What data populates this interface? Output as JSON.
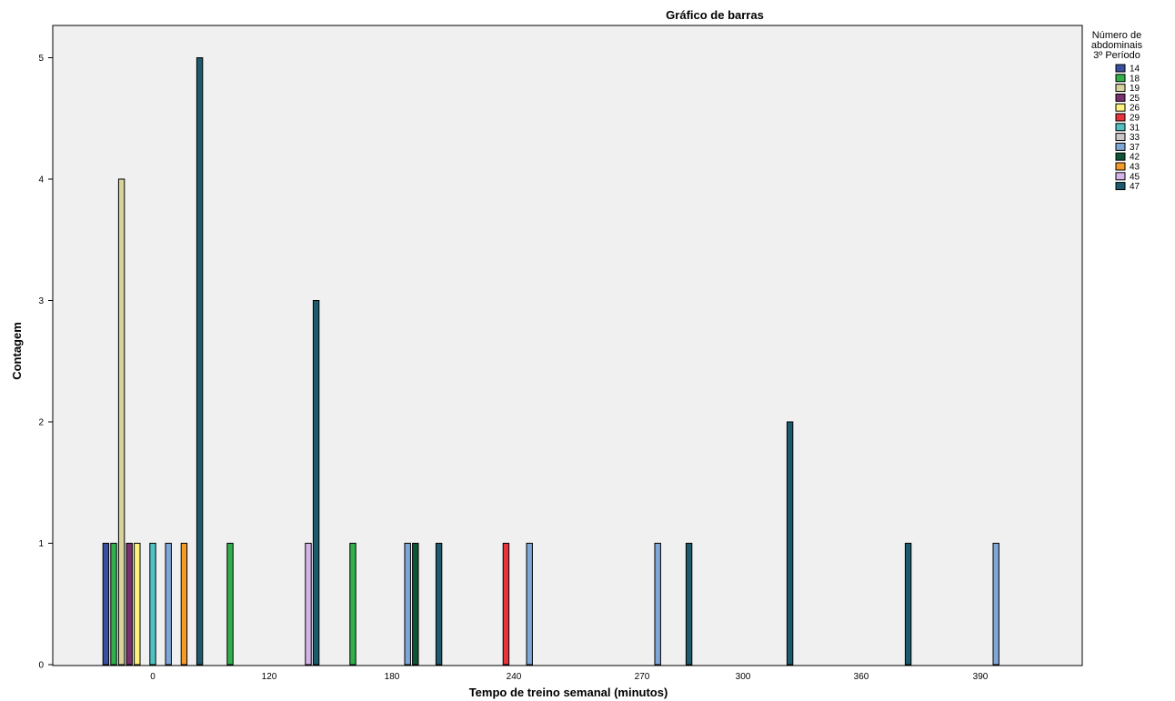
{
  "chart_data": {
    "type": "bar",
    "title": "Gráfico de barras",
    "xlabel": "Tempo de treino semanal (minutos)",
    "ylabel": "Contagem",
    "ylim": [
      0,
      5.25
    ],
    "yticks": [
      0,
      1,
      2,
      3,
      4,
      5
    ],
    "categories": [
      "0",
      "120",
      "180",
      "240",
      "270",
      "300",
      "360",
      "390"
    ],
    "legend": {
      "title_lines": [
        "Número de",
        "abdominais",
        "3º Período"
      ],
      "position": "top-right"
    },
    "series": [
      {
        "name": "14",
        "color": "#3a4fa0",
        "values": [
          1,
          0,
          0,
          0,
          0,
          0,
          0,
          0
        ]
      },
      {
        "name": "18",
        "color": "#2fb04a",
        "values": [
          1,
          1,
          1,
          0,
          0,
          0,
          0,
          0
        ]
      },
      {
        "name": "19",
        "color": "#d8d39c",
        "values": [
          4,
          0,
          0,
          0,
          0,
          0,
          0,
          0
        ]
      },
      {
        "name": "25",
        "color": "#7a2f6e",
        "values": [
          1,
          0,
          0,
          0,
          0,
          0,
          0,
          0
        ]
      },
      {
        "name": "26",
        "color": "#fbf37d",
        "values": [
          1,
          0,
          0,
          0,
          0,
          0,
          0,
          0
        ]
      },
      {
        "name": "29",
        "color": "#e8323c",
        "values": [
          0,
          0,
          0,
          1,
          0,
          0,
          0,
          0
        ]
      },
      {
        "name": "31",
        "color": "#4fc1c4",
        "values": [
          1,
          0,
          0,
          0,
          0,
          0,
          0,
          0
        ]
      },
      {
        "name": "33",
        "color": "#c8c8c8",
        "values": [
          0,
          0,
          0,
          0,
          0,
          0,
          0,
          0
        ]
      },
      {
        "name": "37",
        "color": "#7fa6d9",
        "values": [
          1,
          0,
          1,
          1,
          1,
          0,
          0,
          1
        ]
      },
      {
        "name": "42",
        "color": "#0f5535",
        "values": [
          0,
          0,
          1,
          0,
          0,
          0,
          0,
          0
        ]
      },
      {
        "name": "43",
        "color": "#f39a27",
        "values": [
          1,
          0,
          0,
          0,
          0,
          0,
          0,
          0
        ]
      },
      {
        "name": "45",
        "color": "#d6b3ea",
        "values": [
          0,
          1,
          0,
          0,
          0,
          0,
          0,
          0
        ]
      },
      {
        "name": "47",
        "color": "#1d5a6e",
        "values": [
          5,
          3,
          1,
          0,
          1,
          2,
          1,
          0
        ]
      }
    ]
  }
}
